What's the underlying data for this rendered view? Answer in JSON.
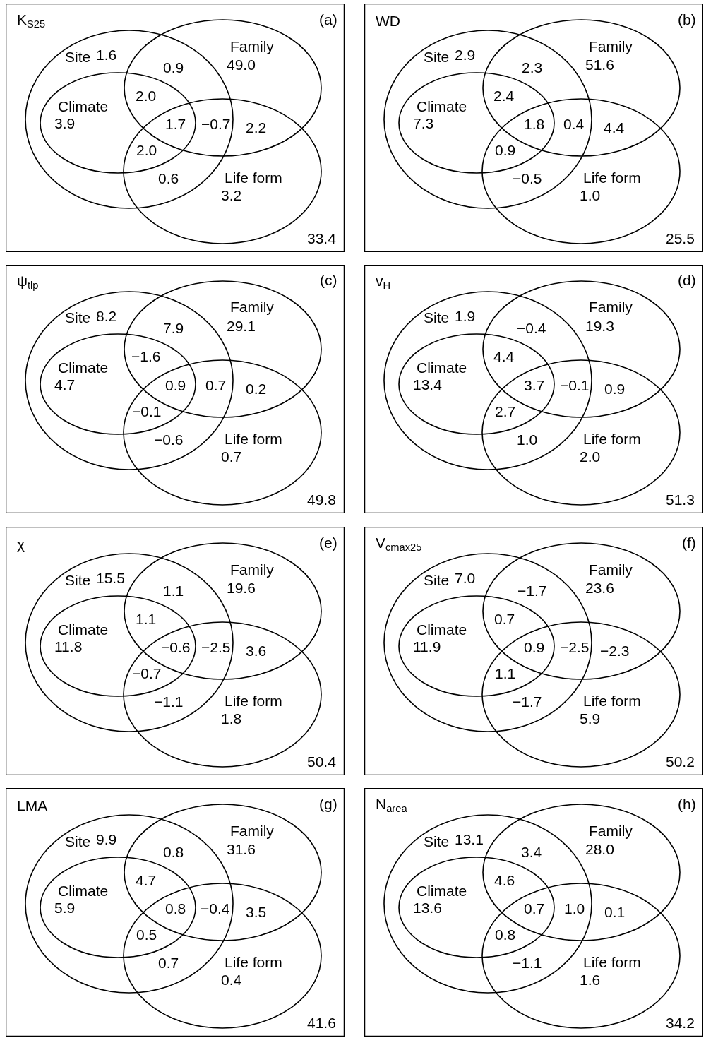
{
  "chart_data": [
    {
      "type": "other",
      "title": "K$_{S25}$",
      "categories": [
        "Site",
        "Family",
        "Climate",
        "Life form"
      ],
      "values": [
        1.6,
        49.0,
        3.9,
        3.2
      ],
      "value_labels": [
        "1.6",
        "49.0",
        "3.9",
        "3.2"
      ],
      "annotations": [
        "(a)",
        "0.9",
        "2.0",
        "1.7",
        "−0.7",
        "2.2",
        "2.0",
        "0.6",
        "33.4"
      ]
    },
    {
      "type": "other",
      "title": "WD",
      "categories": [
        "Site",
        "Family",
        "Climate",
        "Life form"
      ],
      "values": [
        2.9,
        51.6,
        7.3,
        1.0
      ],
      "value_labels": [
        "2.9",
        "51.6",
        "7.3",
        "1.0"
      ],
      "annotations": [
        "(b)",
        "2.3",
        "2.4",
        "1.8",
        "0.4",
        "4.4",
        "0.9",
        "−0.5",
        "25.5"
      ]
    },
    {
      "type": "other",
      "title": "ψ$_{tlp}$",
      "categories": [
        "Site",
        "Family",
        "Climate",
        "Life form"
      ],
      "values": [
        8.2,
        29.1,
        4.7,
        0.7
      ],
      "value_labels": [
        "8.2",
        "29.1",
        "4.7",
        "0.7"
      ],
      "annotations": [
        "(c)",
        "7.9",
        "−1.6",
        "0.9",
        "0.7",
        "0.2",
        "−0.1",
        "−0.6",
        "49.8"
      ]
    },
    {
      "type": "other",
      "title": "v$_{H}$",
      "categories": [
        "Site",
        "Family",
        "Climate",
        "Life form"
      ],
      "values": [
        1.9,
        19.3,
        13.4,
        2.0
      ],
      "value_labels": [
        "1.9",
        "19.3",
        "13.4",
        "2.0"
      ],
      "annotations": [
        "(d)",
        "−0.4",
        "4.4",
        "3.7",
        "−0.1",
        "0.9",
        "2.7",
        "1.0",
        "51.3"
      ]
    },
    {
      "type": "other",
      "title": "χ",
      "categories": [
        "Site",
        "Family",
        "Climate",
        "Life form"
      ],
      "values": [
        15.5,
        19.6,
        11.8,
        1.8
      ],
      "value_labels": [
        "15.5",
        "19.6",
        "11.8",
        "1.8"
      ],
      "annotations": [
        "(e)",
        "1.1",
        "1.1",
        "−0.6",
        "−2.5",
        "3.6",
        "−0.7",
        "−1.1",
        "50.4"
      ]
    },
    {
      "type": "other",
      "title": "V$_{cmax25}$",
      "categories": [
        "Site",
        "Family",
        "Climate",
        "Life form"
      ],
      "values": [
        7.0,
        23.6,
        11.9,
        5.9
      ],
      "value_labels": [
        "7.0",
        "23.6",
        "11.9",
        "5.9"
      ],
      "annotations": [
        "(f)",
        "−1.7",
        "0.7",
        "0.9",
        "−2.5",
        "−2.3",
        "1.1",
        "−1.7",
        "50.2"
      ]
    },
    {
      "type": "other",
      "title": "LMA",
      "categories": [
        "Site",
        "Family",
        "Climate",
        "Life form"
      ],
      "values": [
        9.9,
        31.6,
        5.9,
        0.4
      ],
      "value_labels": [
        "9.9",
        "31.6",
        "5.9",
        "0.4"
      ],
      "annotations": [
        "(g)",
        "0.8",
        "4.7",
        "0.8",
        "−0.4",
        "3.5",
        "0.5",
        "0.7",
        "41.6"
      ]
    },
    {
      "type": "other",
      "title": "N$_{area}$",
      "categories": [
        "Site",
        "Family",
        "Climate",
        "Life form"
      ],
      "values": [
        13.1,
        28.0,
        13.6,
        1.6
      ],
      "value_labels": [
        "13.1",
        "28.0",
        "13.6",
        "1.6"
      ],
      "annotations": [
        "(h)",
        "3.4",
        "4.6",
        "0.7",
        "1.0",
        "0.1",
        "0.8",
        "−1.1",
        "34.2"
      ]
    }
  ]
}
